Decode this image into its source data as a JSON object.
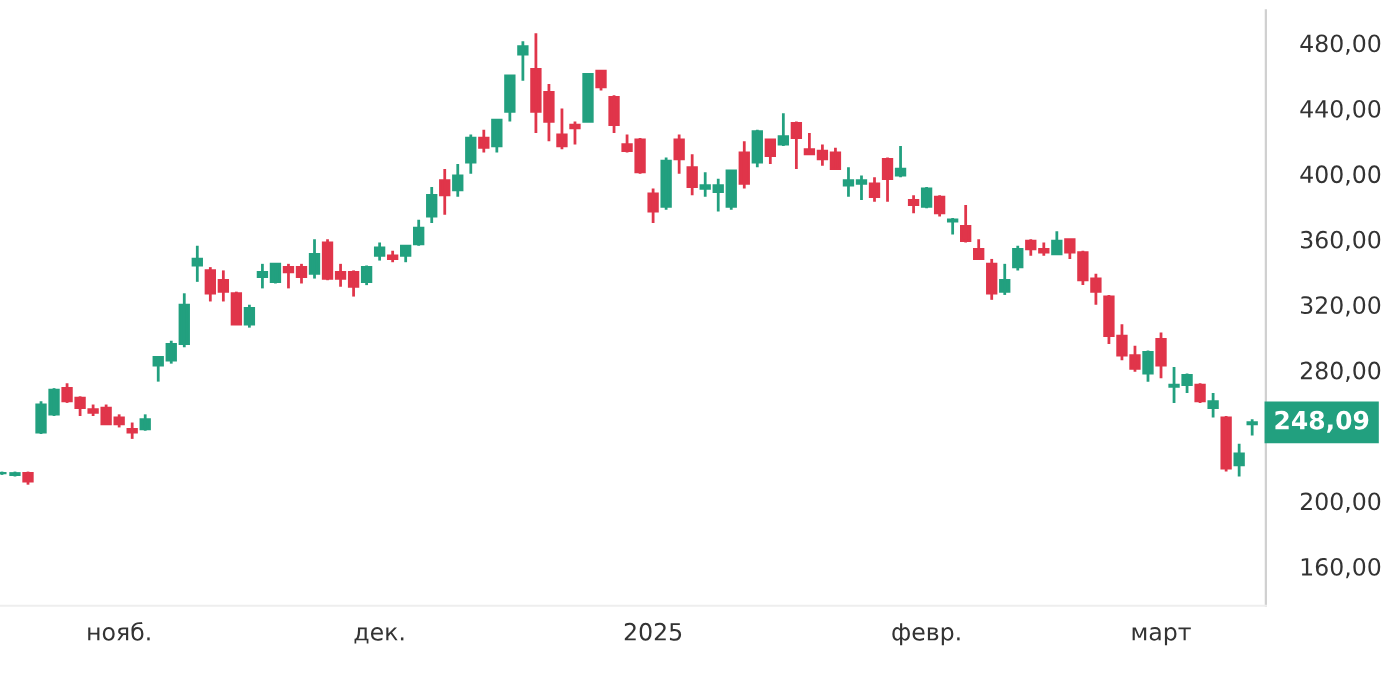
{
  "chart_data": {
    "type": "candlestick",
    "categories": [
      null,
      null,
      null,
      null,
      null,
      null,
      null,
      null,
      null,
      "нояб.",
      null,
      null,
      null,
      null,
      null,
      null,
      null,
      null,
      null,
      null,
      null,
      null,
      null,
      null,
      null,
      null,
      null,
      null,
      null,
      "дек.",
      null,
      null,
      null,
      null,
      null,
      null,
      null,
      null,
      null,
      null,
      null,
      null,
      null,
      null,
      null,
      null,
      null,
      null,
      null,
      null,
      "2025",
      null,
      null,
      null,
      null,
      null,
      null,
      null,
      null,
      null,
      null,
      null,
      null,
      null,
      null,
      null,
      null,
      null,
      null,
      null,
      null,
      "февр.",
      null,
      null,
      null,
      null,
      null,
      null,
      null,
      null,
      null,
      null,
      null,
      null,
      null,
      null,
      null,
      null,
      null,
      "март",
      null,
      null,
      null,
      null,
      null,
      null,
      null
    ],
    "ohlc": [
      [
        217,
        218,
        216,
        217
      ],
      [
        216,
        218,
        215,
        217
      ],
      [
        217,
        218,
        210,
        212
      ],
      [
        242,
        261,
        241,
        259
      ],
      [
        253,
        269,
        252,
        268
      ],
      [
        269,
        272,
        260,
        261
      ],
      [
        263,
        264,
        252,
        257
      ],
      [
        256,
        259,
        252,
        254
      ],
      [
        257,
        259,
        247,
        247
      ],
      [
        251,
        253,
        245,
        247
      ],
      [
        244,
        248,
        238,
        242
      ],
      [
        244,
        253,
        243,
        250
      ],
      [
        283,
        288,
        273,
        288
      ],
      [
        286,
        298,
        284,
        296
      ],
      [
        296,
        327,
        294,
        320
      ],
      [
        344,
        356,
        334,
        348
      ],
      [
        341,
        343,
        322,
        327
      ],
      [
        335,
        341,
        322,
        328
      ],
      [
        327,
        328,
        308,
        308
      ],
      [
        308,
        320,
        306,
        318
      ],
      [
        337,
        345,
        330,
        340
      ],
      [
        334,
        345,
        333,
        345
      ],
      [
        343,
        345,
        330,
        340
      ],
      [
        343,
        345,
        333,
        337
      ],
      [
        339,
        360,
        336,
        351
      ],
      [
        358,
        360,
        335,
        336
      ],
      [
        340,
        345,
        331,
        336
      ],
      [
        340,
        341,
        325,
        331
      ],
      [
        334,
        344,
        332,
        343
      ],
      [
        350,
        358,
        347,
        355
      ],
      [
        350,
        353,
        346,
        348
      ],
      [
        350,
        356,
        346,
        356
      ],
      [
        357,
        372,
        356,
        367
      ],
      [
        374,
        392,
        370,
        387
      ],
      [
        396,
        403,
        375,
        387
      ],
      [
        390,
        406,
        386,
        399
      ],
      [
        407,
        424,
        400,
        422
      ],
      [
        422,
        427,
        413,
        416
      ],
      [
        417,
        433,
        413,
        433
      ],
      [
        438,
        460,
        432,
        460
      ],
      [
        473,
        481,
        457,
        478
      ],
      [
        464,
        486,
        425,
        438
      ],
      [
        450,
        455,
        420,
        432
      ],
      [
        424,
        440,
        415,
        417
      ],
      [
        430,
        432,
        418,
        428
      ],
      [
        432,
        461,
        432,
        461
      ],
      [
        463,
        463,
        451,
        453
      ],
      [
        447,
        448,
        425,
        430
      ],
      [
        418,
        424,
        413,
        414
      ],
      [
        421,
        422,
        400,
        401
      ],
      [
        388,
        391,
        370,
        377
      ],
      [
        380,
        410,
        378,
        408
      ],
      [
        421,
        424,
        400,
        409
      ],
      [
        404,
        412,
        387,
        392
      ],
      [
        391,
        401,
        386,
        393
      ],
      [
        389,
        397,
        377,
        393
      ],
      [
        380,
        402,
        378,
        402
      ],
      [
        413,
        420,
        391,
        394
      ],
      [
        407,
        427,
        404,
        426
      ],
      [
        421,
        421,
        406,
        411
      ],
      [
        418,
        437,
        417,
        423
      ],
      [
        431,
        432,
        403,
        422
      ],
      [
        415,
        425,
        412,
        412
      ],
      [
        414,
        418,
        405,
        409
      ],
      [
        413,
        416,
        403,
        403
      ],
      [
        393,
        404,
        386,
        396
      ],
      [
        394,
        399,
        384,
        396
      ],
      [
        394,
        398,
        383,
        386
      ],
      [
        409,
        410,
        383,
        397
      ],
      [
        399,
        417,
        398,
        403
      ],
      [
        384,
        387,
        376,
        381
      ],
      [
        380,
        392,
        379,
        391
      ],
      [
        386,
        387,
        374,
        376
      ],
      [
        371,
        373,
        363,
        372
      ],
      [
        368,
        381,
        358,
        359
      ],
      [
        354,
        360,
        348,
        348
      ],
      [
        345,
        348,
        323,
        327
      ],
      [
        328,
        345,
        326,
        335
      ],
      [
        343,
        356,
        341,
        354
      ],
      [
        359,
        360,
        350,
        354
      ],
      [
        354,
        358,
        350,
        352
      ],
      [
        351,
        365,
        351,
        359
      ],
      [
        360,
        360,
        348,
        352
      ],
      [
        352,
        353,
        332,
        335
      ],
      [
        336,
        339,
        320,
        328
      ],
      [
        325,
        326,
        296,
        301
      ],
      [
        301,
        308,
        286,
        289
      ],
      [
        289,
        295,
        279,
        281
      ],
      [
        278,
        292,
        273,
        291
      ],
      [
        299,
        303,
        275,
        283
      ],
      [
        270,
        282,
        260,
        271
      ],
      [
        271,
        278,
        266,
        277
      ],
      [
        271,
        272,
        260,
        261
      ],
      [
        257,
        266,
        251,
        261
      ],
      [
        251,
        252,
        218,
        220
      ],
      [
        222,
        235,
        215,
        229
      ],
      [
        247,
        250,
        240,
        248.09
      ]
    ],
    "colors": [
      "#22a07f",
      "#22a07f",
      "#e0354a",
      "#22a07f",
      "#22a07f",
      "#e0354a",
      "#e0354a",
      "#e0354a",
      "#e0354a",
      "#e0354a",
      "#e0354a",
      "#22a07f",
      "#22a07f",
      "#22a07f",
      "#22a07f",
      "#22a07f",
      "#e0354a",
      "#e0354a",
      "#e0354a",
      "#22a07f",
      "#22a07f",
      "#22a07f",
      "#e0354a",
      "#e0354a",
      "#22a07f",
      "#e0354a",
      "#e0354a",
      "#e0354a",
      "#22a07f",
      "#22a07f",
      "#e0354a",
      "#22a07f",
      "#22a07f",
      "#22a07f",
      "#e0354a",
      "#22a07f",
      "#22a07f",
      "#e0354a",
      "#22a07f",
      "#22a07f",
      "#22a07f",
      "#e0354a",
      "#e0354a",
      "#e0354a",
      "#e0354a",
      "#22a07f",
      "#e0354a",
      "#e0354a",
      "#e0354a",
      "#e0354a",
      "#e0354a",
      "#22a07f",
      "#e0354a",
      "#e0354a",
      "#22a07f",
      "#22a07f",
      "#22a07f",
      "#e0354a",
      "#22a07f",
      "#e0354a",
      "#22a07f",
      "#e0354a",
      "#e0354a",
      "#e0354a",
      "#e0354a",
      "#22a07f",
      "#22a07f",
      "#e0354a",
      "#e0354a",
      "#22a07f",
      "#e0354a",
      "#22a07f",
      "#e0354a",
      "#22a07f",
      "#e0354a",
      "#e0354a",
      "#e0354a",
      "#22a07f",
      "#22a07f",
      "#e0354a",
      "#e0354a",
      "#22a07f",
      "#e0354a",
      "#e0354a",
      "#e0354a",
      "#e0354a",
      "#e0354a",
      "#e0354a",
      "#22a07f",
      "#e0354a",
      "#22a07f",
      "#22a07f",
      "#e0354a",
      "#22a07f",
      "#e0354a",
      "#22a07f",
      "#22a07f"
    ],
    "ylim": [
      136,
      500
    ],
    "yticks": [
      {
        "value": 160,
        "label": "160,00"
      },
      {
        "value": 200,
        "label": "200,00"
      },
      {
        "value": 280,
        "label": "280,00"
      },
      {
        "value": 320,
        "label": "320,00"
      },
      {
        "value": 360,
        "label": "360,00"
      },
      {
        "value": 400,
        "label": "400,00"
      },
      {
        "value": 440,
        "label": "440,00"
      },
      {
        "value": 480,
        "label": "480,00"
      }
    ],
    "annotations": [
      "248,09"
    ]
  }
}
